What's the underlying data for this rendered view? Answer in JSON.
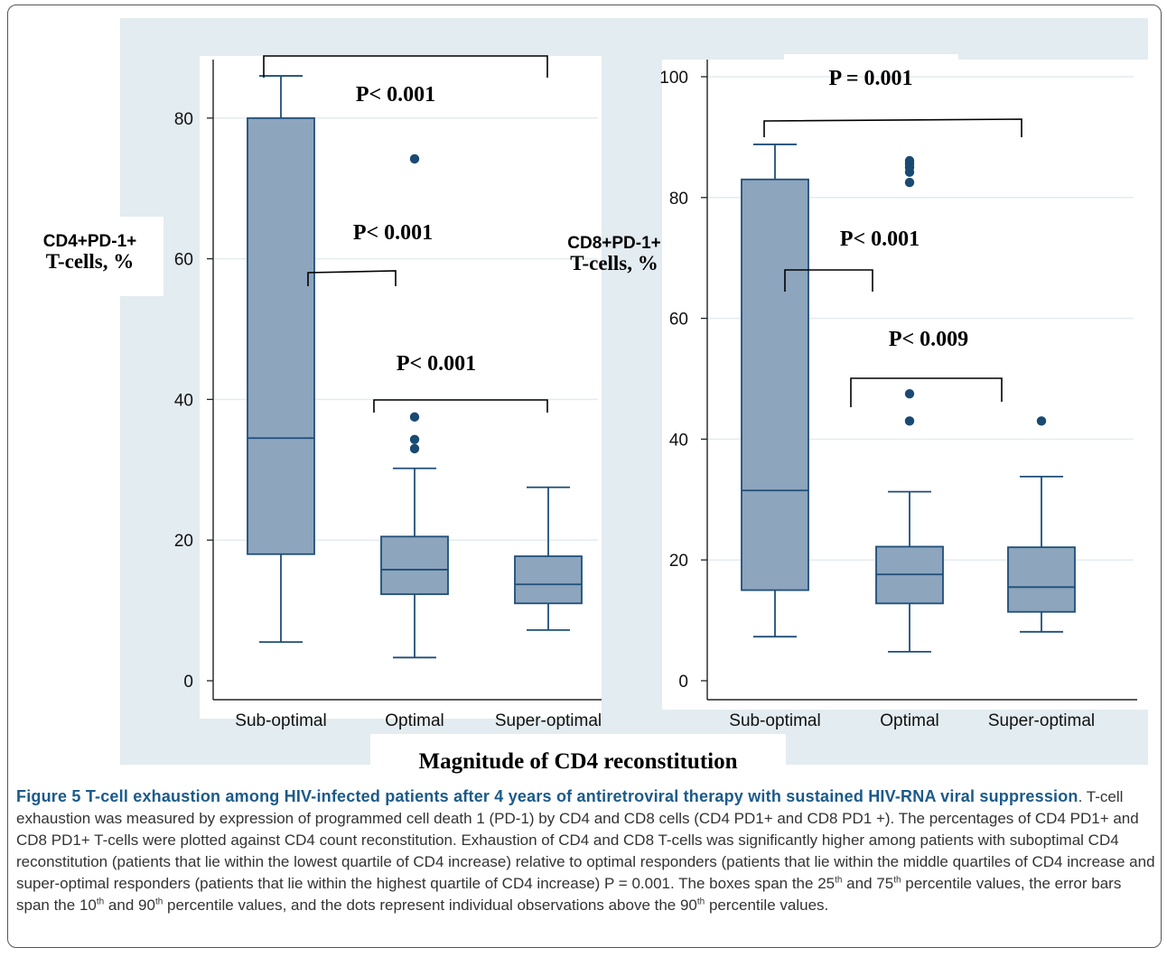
{
  "xlabel": "Magnitude of CD4 reconstitution",
  "chart_data": [
    {
      "type": "box",
      "ylabel": [
        "CD4+PD-1+",
        "T-cells, %"
      ],
      "categories": [
        "Sub-optimal",
        "Optimal",
        "Super-optimal"
      ],
      "yticks": [
        0,
        20,
        40,
        60,
        80
      ],
      "ylim": [
        -2,
        88
      ],
      "grid": true,
      "boxes": [
        {
          "category": "Sub-optimal",
          "whisker_low": 5.5,
          "q1": 18,
          "median": 34.5,
          "q3": 80,
          "whisker_high": 86,
          "outliers": []
        },
        {
          "category": "Optimal",
          "whisker_low": 3.3,
          "q1": 12.3,
          "median": 15.8,
          "q3": 20.5,
          "whisker_high": 30.2,
          "outliers": [
            33,
            34.3,
            37.5,
            74.2
          ]
        },
        {
          "category": "Super-optimal",
          "whisker_low": 7.2,
          "q1": 11,
          "median": 13.7,
          "q3": 17.7,
          "whisker_high": 27.5,
          "outliers": []
        }
      ],
      "annotations": [
        {
          "text": "P< 0.001",
          "from": "Sub-optimal",
          "to": "Super-optimal"
        },
        {
          "text": "P< 0.001",
          "from": "Sub-optimal",
          "to": "Optimal"
        },
        {
          "text": "P< 0.001",
          "from": "Optimal",
          "to": "Super-optimal"
        }
      ]
    },
    {
      "type": "box",
      "ylabel": [
        "CD8+PD-1+",
        "T-cells, %"
      ],
      "categories": [
        "Sub-optimal",
        "Optimal",
        "Super-optimal"
      ],
      "yticks": [
        0,
        20,
        40,
        60,
        80,
        100
      ],
      "ylim": [
        -2,
        102
      ],
      "grid": true,
      "boxes": [
        {
          "category": "Sub-optimal",
          "whisker_low": 7.3,
          "q1": 15,
          "median": 31.5,
          "q3": 83,
          "whisker_high": 88.8,
          "outliers": []
        },
        {
          "category": "Optimal",
          "whisker_low": 4.8,
          "q1": 12.8,
          "median": 17.6,
          "q3": 22.2,
          "whisker_high": 31.3,
          "outliers": [
            43,
            47.5,
            82.5,
            84.2,
            85,
            85.6,
            86.1
          ]
        },
        {
          "category": "Super-optimal",
          "whisker_low": 8.1,
          "q1": 11.4,
          "median": 15.5,
          "q3": 22.1,
          "whisker_high": 33.8,
          "outliers": [
            43
          ]
        }
      ],
      "annotations": [
        {
          "text": "P = 0.001",
          "from": "Sub-optimal",
          "to": "Super-optimal"
        },
        {
          "text": "P< 0.001",
          "from": "Sub-optimal",
          "to": "Optimal"
        },
        {
          "text": "P< 0.009",
          "from": "Optimal",
          "to": "Super-optimal"
        }
      ]
    }
  ],
  "colors": {
    "box_fill": "#8da5bd",
    "box_stroke": "#1f4e79",
    "outlier": "#1a4a72",
    "grid": "#e3ecf0",
    "band": "#e3ecf0",
    "caption_title": "#1b5a8a"
  },
  "caption": {
    "title": "Figure 5 T-cell exhaustion among HIV-infected patients after 4 years of antiretroviral therapy with sustained HIV-RNA viral suppression",
    "s1": ". T-cell exhaustion was measured by expression of programmed cell death 1 (PD-1) by CD4 and CD8 cells (CD4 PD1+ and CD8 PD1 +). The percentages of CD4 PD1+ and CD8 PD1+ T-cells were plotted against CD4 count reconstitution. Exhaustion of CD4 and CD8 T-cells was significantly higher among patients with suboptimal CD4 reconstitution (patients that lie within the lowest quartile of CD4 increase) relative to optimal responders (patients that lie within the middle quartiles of CD4 increase and super-optimal responders (patients that lie within the highest quartile of CD4 increase) P = 0.001. The boxes span the 25",
    "sup1": "th",
    "s2": " and 75",
    "sup2": "th",
    "s3": " percentile values, the error bars span the 10",
    "sup3": "th",
    "s4": " and 90",
    "sup4": "th",
    "s5": " percentile values, and the dots represent individual observations above the 90",
    "sup5": "th",
    "s6": " percentile values."
  }
}
